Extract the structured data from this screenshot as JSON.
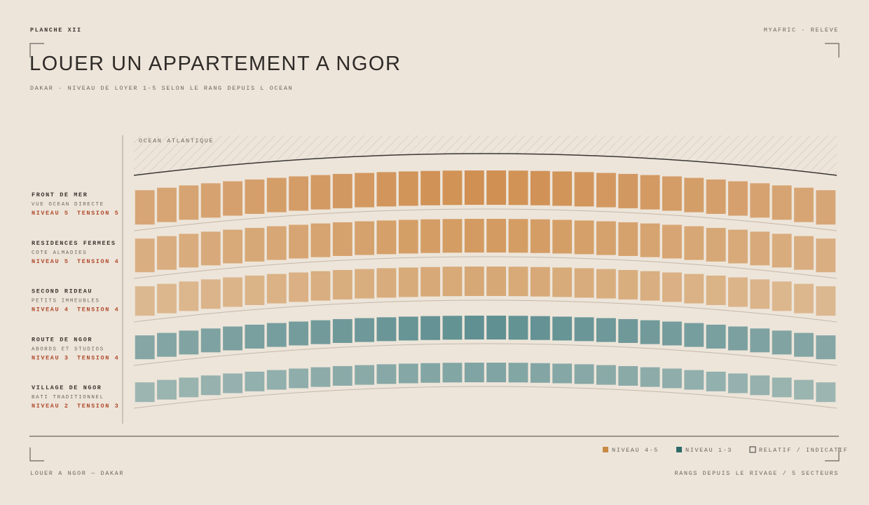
{
  "header": {
    "plate": "PLANCHE XII",
    "source": "MYAFRIC · RELEVE",
    "title": "LOUER UN APPARTEMENT A NGOR",
    "subtitle": "DAKAR · NIVEAU DE LOYER 1-5 SELON LE RANG DEPUIS L OCEAN"
  },
  "ocean_label": "OCEAN ATLANTIQUE",
  "rows": [
    {
      "name": "FRONT DE MER",
      "description": "VUE OCEAN DIRECTE",
      "level": "NIVEAU 5",
      "tension": "TENSION 5",
      "color": "#cf8f52"
    },
    {
      "name": "RESIDENCES FERMEES",
      "description": "COTE ALMADIES",
      "level": "NIVEAU 5",
      "tension": "TENSION 4",
      "color": "#d29a60"
    },
    {
      "name": "SECOND RIDEAU",
      "description": "PETITS IMMEUBLES",
      "level": "NIVEAU 4",
      "tension": "TENSION 4",
      "color": "#d6a774"
    },
    {
      "name": "ROUTE DE NGOR",
      "description": "ABORDS ET STUDIOS",
      "level": "NIVEAU 3",
      "tension": "TENSION 4",
      "color": "#5f8f91"
    },
    {
      "name": "VILLAGE DE NGOR",
      "description": "BATI TRADITIONNEL",
      "level": "NIVEAU 2",
      "tension": "TENSION 3",
      "color": "#7ea3a2"
    }
  ],
  "legend": [
    {
      "label": "NIVEAU 4-5",
      "color": "#c98a46"
    },
    {
      "label": "NIVEAU 1-3",
      "color": "#2e6a68"
    },
    {
      "label": "RELATIF / INDICATIF",
      "color": "#555555"
    }
  ],
  "footer": {
    "left": "LOUER A NGOR — DAKAR",
    "right": "RANGS DEPUIS LE RIVAGE / 5 SECTEURS"
  }
}
